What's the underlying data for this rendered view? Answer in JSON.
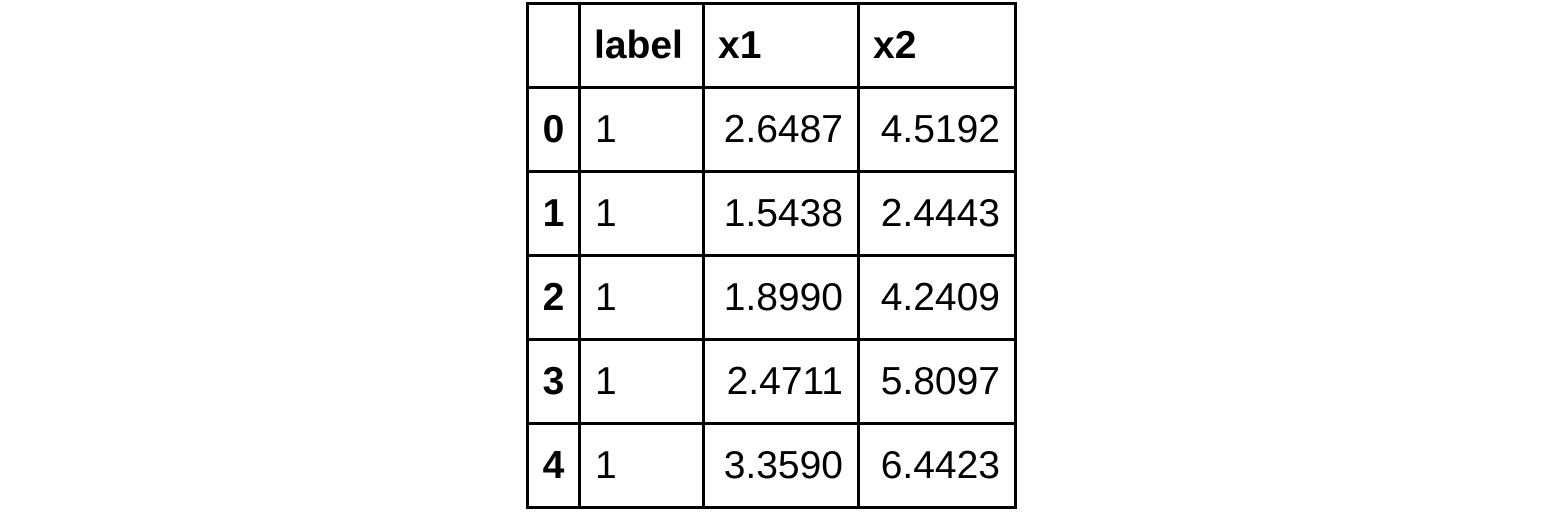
{
  "table": {
    "columns": [
      "",
      "label",
      "x1",
      "x2"
    ],
    "rows": [
      {
        "index": "0",
        "label": "1",
        "x1": "2.6487",
        "x2": "4.5192"
      },
      {
        "index": "1",
        "label": "1",
        "x1": "1.5438",
        "x2": "2.4443"
      },
      {
        "index": "2",
        "label": "1",
        "x1": "1.8990",
        "x2": "4.2409"
      },
      {
        "index": "3",
        "label": "1",
        "x1": "2.4711",
        "x2": "5.8097"
      },
      {
        "index": "4",
        "label": "1",
        "x1": "3.3590",
        "x2": "6.4423"
      }
    ]
  },
  "chart_data": {
    "type": "table",
    "columns": [
      "label",
      "x1",
      "x2"
    ],
    "index": [
      0,
      1,
      2,
      3,
      4
    ],
    "data": [
      [
        1,
        2.6487,
        4.5192
      ],
      [
        1,
        1.5438,
        2.4443
      ],
      [
        1,
        1.899,
        4.2409
      ],
      [
        1,
        2.4711,
        5.8097
      ],
      [
        1,
        3.359,
        6.4423
      ]
    ]
  }
}
